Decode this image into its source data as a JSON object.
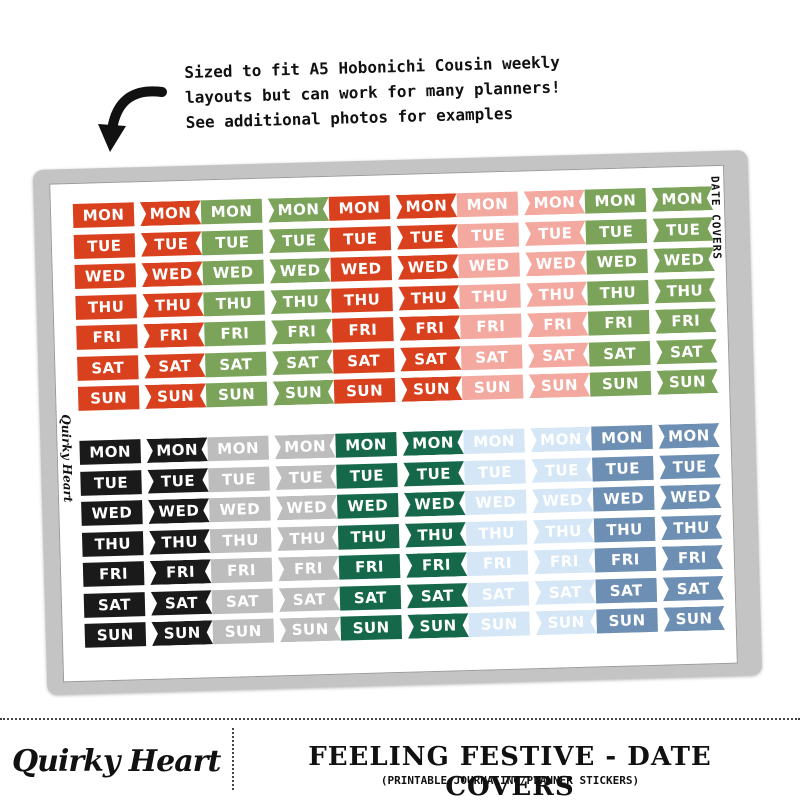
{
  "note_text": "Sized to fit A5 Hobonichi Cousin weekly\nlayouts but can work for many planners!\nSee additional photos for examples",
  "arrow_icon": "curved-arrow-icon",
  "sheet": {
    "side_label": "DATE COVERS",
    "brand_vertical": "Quirky Heart"
  },
  "days": [
    "MON",
    "TUE",
    "WED",
    "THU",
    "FRI",
    "SAT",
    "SUN"
  ],
  "color_sets": [
    {
      "name": "red",
      "color": "#d9411e",
      "text": "#ffffff"
    },
    {
      "name": "green",
      "color": "#7ba45a",
      "text": "#ffffff"
    },
    {
      "name": "red-2",
      "color": "#d9411e",
      "text": "#ffffff"
    },
    {
      "name": "pink",
      "color": "#f3a9a0",
      "text": "#ffffff"
    },
    {
      "name": "green-2",
      "color": "#7ba45a",
      "text": "#ffffff"
    },
    {
      "name": "black",
      "color": "#1a1a1a",
      "text": "#ffffff"
    },
    {
      "name": "grey",
      "color": "#bdbdbd",
      "text": "#ffffff"
    },
    {
      "name": "dark-green",
      "color": "#15694a",
      "text": "#ffffff"
    },
    {
      "name": "light-blue",
      "color": "#d5e7f6",
      "text": "#ffffff"
    },
    {
      "name": "slate-blue",
      "color": "#6d8fb4",
      "text": "#ffffff"
    }
  ],
  "footer": {
    "logo": "Quirky Heart",
    "title": "FEELING FESTIVE - DATE COVERS",
    "subtitle": "(PRINTABLE JOURNALING/PLANNER STICKERS)"
  }
}
